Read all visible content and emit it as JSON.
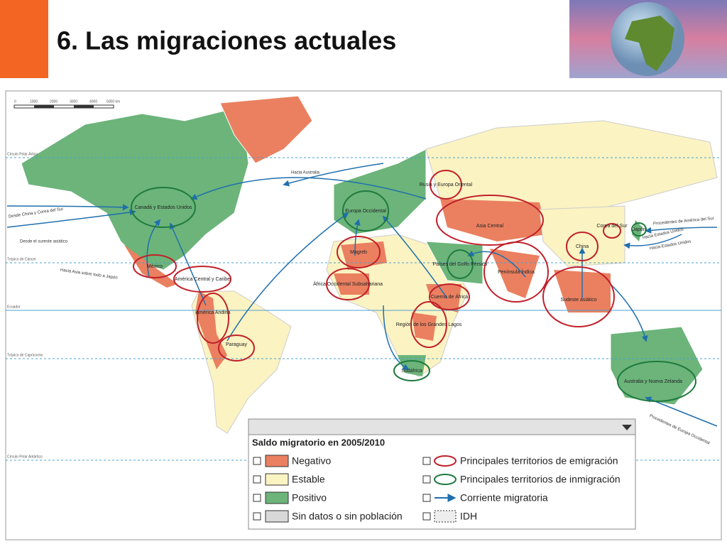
{
  "header": {
    "title": "6. Las migraciones actuales"
  },
  "map": {
    "scale": [
      "0",
      "1000",
      "2000",
      "3000",
      "4000",
      "5000 km"
    ],
    "parallels": [
      "Círculo Polar Ártico",
      "Trópico de Cáncer",
      "Ecuador",
      "Trópico de Capricornio",
      "Círculo Polar Antártico"
    ],
    "regions": [
      "Canadá y Estados Unidos",
      "Europa Occidental",
      "Rusia y Europa Oriental",
      "Asia Central",
      "China",
      "Japón",
      "Corea del Sur",
      "Magreb",
      "África Occidental Subsahariana",
      "Países del Golfo Pérsico",
      "Península Índica",
      "Cuerno de África",
      "Región de los Grandes Lagos",
      "Sudáfrica",
      "Sudeste asiático",
      "Australia y Nueva Zelanda",
      "México",
      "América Central y Caribe",
      "América Andina",
      "Paraguay"
    ],
    "flows": [
      "Hacia Australia",
      "Desde China y Corea del Sur",
      "Desde el sureste asiático",
      "Hacia Asia sobre todo a Japón",
      "Procedentes de América del Sur",
      "Hacia Estados Unidos",
      "Hacia Estados Unidos",
      "Procedentes de Europa Occidental"
    ]
  },
  "legend": {
    "title": "Saldo migratorio en 2005/2010",
    "items": [
      "Negativo",
      "Estable",
      "Positivo",
      "Sin datos o sin población",
      "Principales territorios de emigración",
      "Principales territorios de inmigración",
      "Corriente migratoria",
      "IDH"
    ]
  }
}
